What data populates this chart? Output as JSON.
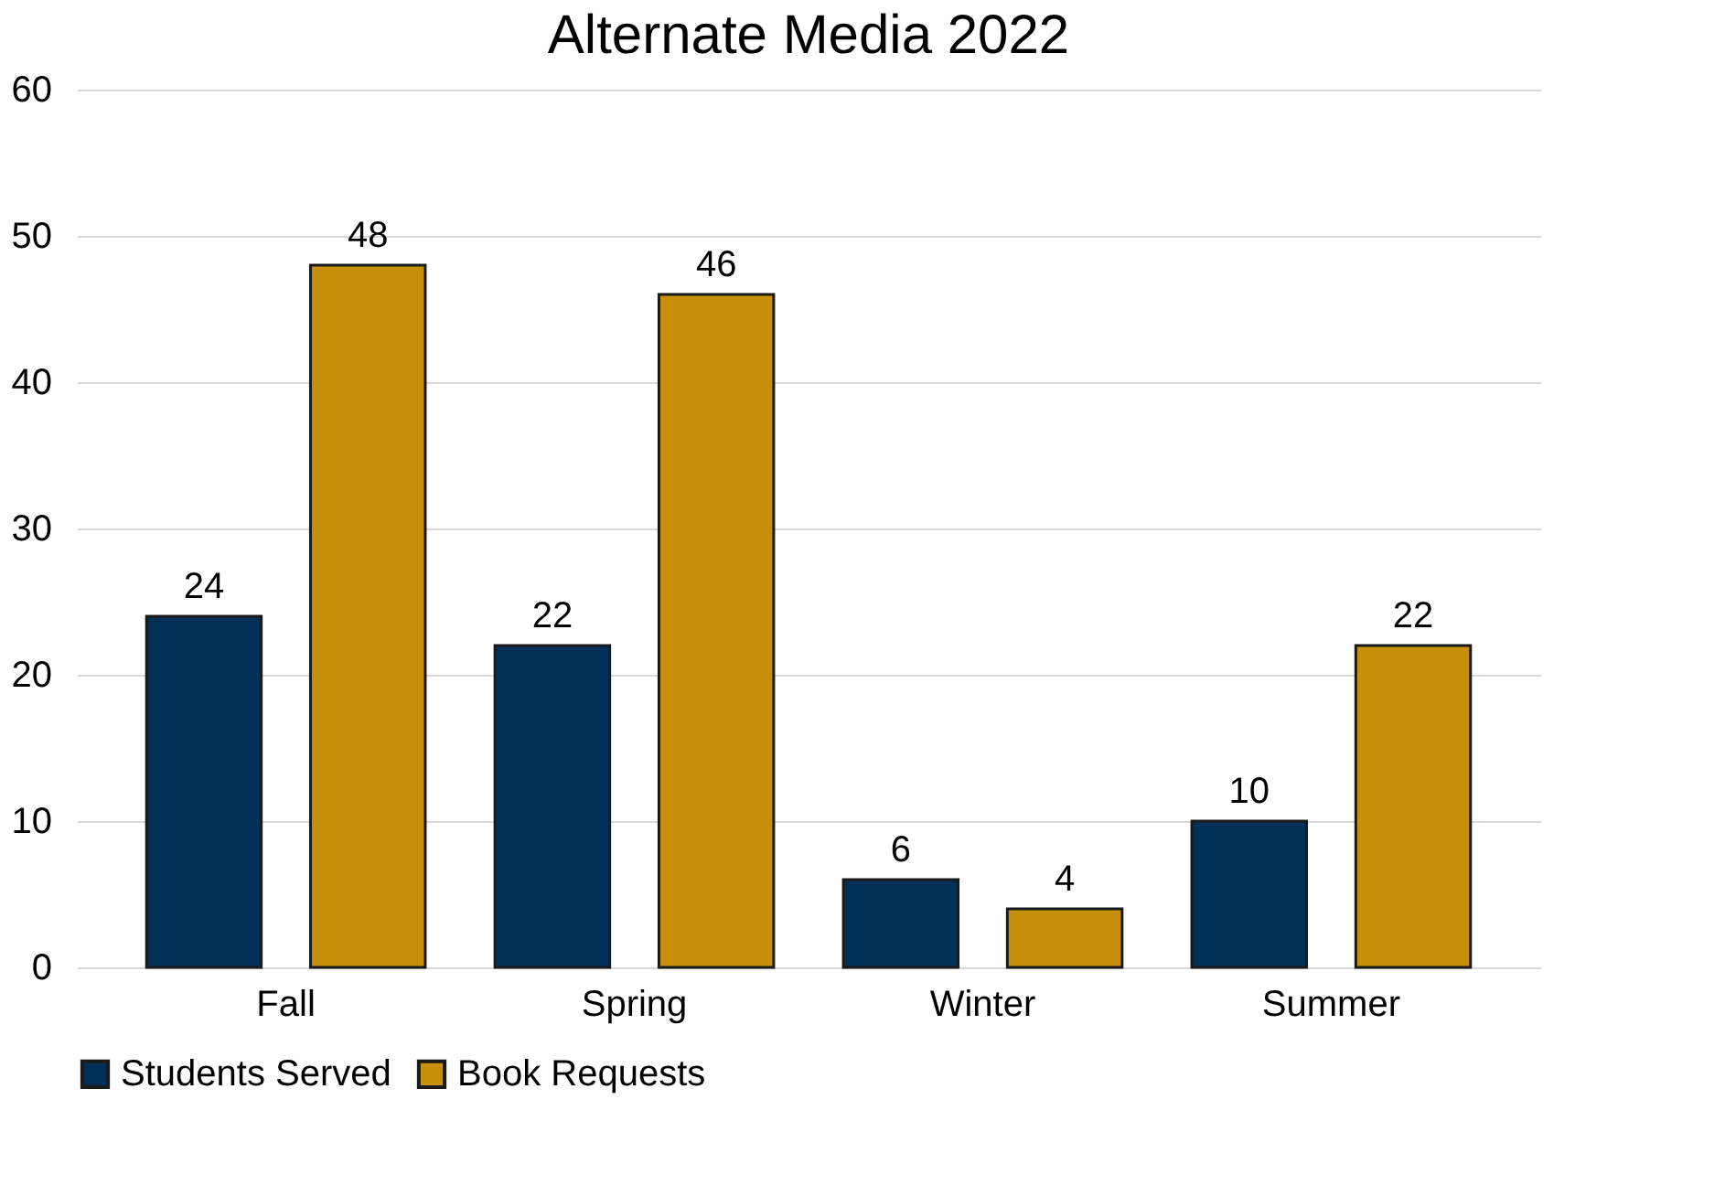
{
  "chart_data": {
    "type": "bar",
    "title": "Alternate Media 2022",
    "categories": [
      "Fall",
      "Spring",
      "Winter",
      "Summer"
    ],
    "series": [
      {
        "name": "Students Served",
        "color": "#003057",
        "values": [
          24,
          22,
          6,
          10
        ]
      },
      {
        "name": "Book Requests",
        "color": "#c8900a",
        "values": [
          48,
          46,
          4,
          22
        ]
      }
    ],
    "ylim": [
      0,
      60
    ],
    "yticks": [
      0,
      10,
      20,
      30,
      40,
      50,
      60
    ],
    "grid": "y",
    "legend": "bottom",
    "data_labels": true
  }
}
